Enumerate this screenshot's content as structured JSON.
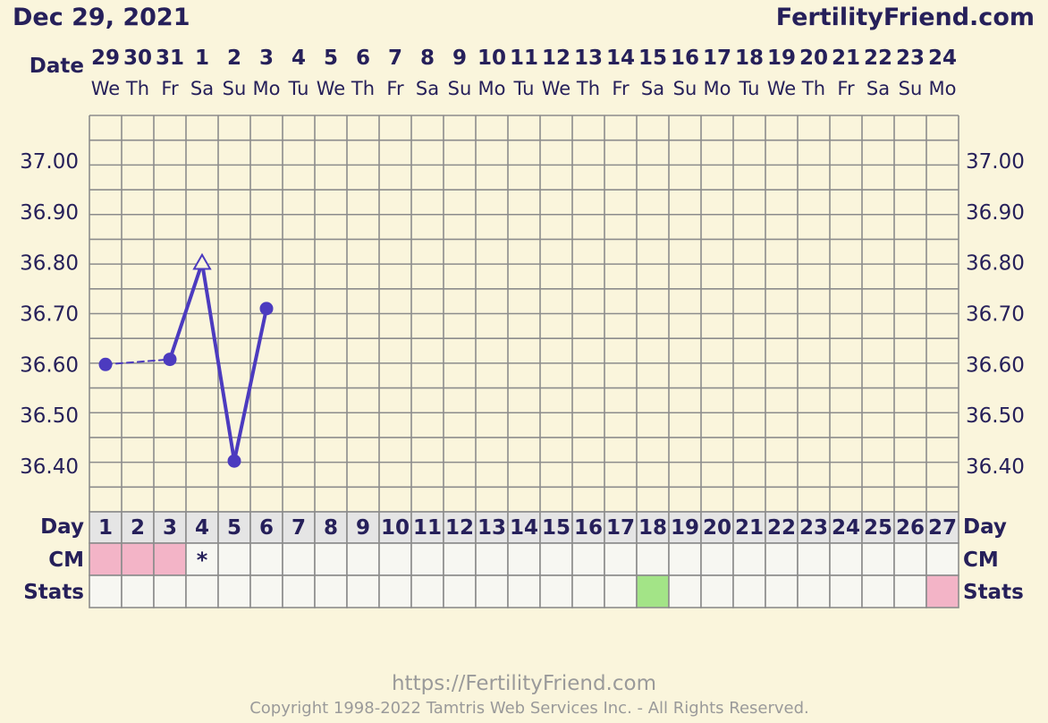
{
  "header": {
    "date": "Dec 29, 2021",
    "brand": "FertilityFriend.com"
  },
  "labels": {
    "date_row": "Date",
    "day_row": "Day",
    "cm_row": "CM",
    "stats_row": "Stats"
  },
  "footer": {
    "url": "https://FertilityFriend.com",
    "copyright": "Copyright 1998-2022 Tamtris Web Services Inc. - All Rights Reserved."
  },
  "chart_data": {
    "type": "line",
    "dates": [
      "29",
      "30",
      "31",
      "1",
      "2",
      "3",
      "4",
      "5",
      "6",
      "7",
      "8",
      "9",
      "10",
      "11",
      "12",
      "13",
      "14",
      "15",
      "16",
      "17",
      "18",
      "19",
      "20",
      "21",
      "22",
      "23",
      "24"
    ],
    "weekdays": [
      "We",
      "Th",
      "Fr",
      "Sa",
      "Su",
      "Mo",
      "Tu",
      "We",
      "Th",
      "Fr",
      "Sa",
      "Su",
      "Mo",
      "Tu",
      "We",
      "Th",
      "Fr",
      "Sa",
      "Su",
      "Mo",
      "Tu",
      "We",
      "Th",
      "Fr",
      "Sa",
      "Su",
      "Mo"
    ],
    "cycle_days": [
      "1",
      "2",
      "3",
      "4",
      "5",
      "6",
      "7",
      "8",
      "9",
      "10",
      "11",
      "12",
      "13",
      "14",
      "15",
      "16",
      "17",
      "18",
      "19",
      "20",
      "21",
      "22",
      "23",
      "24",
      "25",
      "26",
      "27"
    ],
    "y_ticks": [
      "37.00",
      "36.90",
      "36.80",
      "36.70",
      "36.60",
      "36.50",
      "36.40"
    ],
    "ylim": [
      36.31,
      37.09
    ],
    "temperatures": [
      {
        "day": 1,
        "value": 36.6,
        "marker": "circle"
      },
      {
        "day": 3,
        "value": 36.61,
        "marker": "circle"
      },
      {
        "day": 4,
        "value": 36.8,
        "marker": "triangle"
      },
      {
        "day": 5,
        "value": 36.41,
        "marker": "circle"
      },
      {
        "day": 6,
        "value": 36.71,
        "marker": "circle"
      }
    ],
    "line_style_gap": "dashed",
    "cm_cells": [
      {
        "day": 1,
        "color": "#f3b4c7"
      },
      {
        "day": 2,
        "color": "#f3b4c7"
      },
      {
        "day": 3,
        "color": "#f3b4c7"
      },
      {
        "day": 4,
        "text": "*"
      }
    ],
    "stats_cells": [
      {
        "day": 18,
        "color": "#a3e487"
      },
      {
        "day": 27,
        "color": "#f3b4c7"
      }
    ],
    "series_color": "#4c3bbf",
    "grid": true
  }
}
